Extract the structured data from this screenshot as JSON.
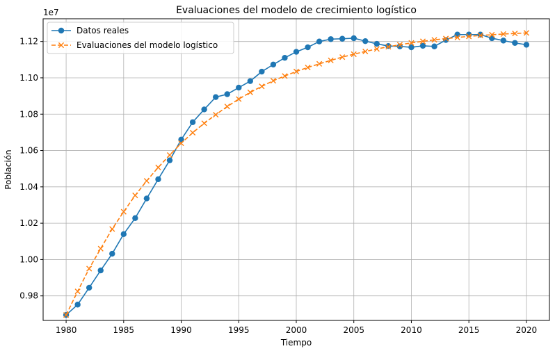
{
  "chart_data": {
    "type": "line",
    "title": "Evaluaciones del modelo de crecimiento logístico",
    "xlabel": "Tiempo",
    "ylabel": "Población",
    "y_offset_label": "1e7",
    "xlim": [
      1978,
      2022
    ],
    "ylim": [
      0.9665,
      1.1325
    ],
    "x_ticks": [
      1980,
      1985,
      1990,
      1995,
      2000,
      2005,
      2010,
      2015,
      2020
    ],
    "y_ticks": [
      0.98,
      1.0,
      1.02,
      1.04,
      1.06,
      1.08,
      1.1,
      1.12
    ],
    "y_tick_labels": [
      "0.98",
      "1.00",
      "1.02",
      "1.04",
      "1.06",
      "1.08",
      "1.10",
      "1.12"
    ],
    "grid": true,
    "legend_position": "top-left",
    "x": [
      1980,
      1981,
      1982,
      1983,
      1984,
      1985,
      1986,
      1987,
      1988,
      1989,
      1990,
      1991,
      1992,
      1993,
      1994,
      1995,
      1996,
      1997,
      1998,
      1999,
      2000,
      2001,
      2002,
      2003,
      2004,
      2005,
      2006,
      2007,
      2008,
      2009,
      2010,
      2011,
      2012,
      2013,
      2014,
      2015,
      2016,
      2017,
      2018,
      2019,
      2020
    ],
    "series": [
      {
        "name": "Datos reales",
        "color": "#1f77b4",
        "marker": "circle",
        "line_style": "solid",
        "values": [
          0.9695,
          0.9752,
          0.9845,
          0.994,
          1.0032,
          1.014,
          1.0228,
          1.0336,
          1.0442,
          1.0546,
          1.066,
          1.0756,
          1.0826,
          1.0894,
          1.091,
          1.0946,
          1.0982,
          1.1034,
          1.1073,
          1.111,
          1.1143,
          1.1168,
          1.12,
          1.1213,
          1.1215,
          1.1218,
          1.1202,
          1.1187,
          1.1175,
          1.1173,
          1.1168,
          1.1176,
          1.1173,
          1.1208,
          1.1238,
          1.1238,
          1.1238,
          1.1218,
          1.1205,
          1.1192,
          1.1182
        ]
      },
      {
        "name": "Evaluaciones del modelo logístico",
        "color": "#ff7f0e",
        "marker": "x",
        "line_style": "dashed",
        "values": [
          0.9695,
          0.9825,
          0.995,
          1.006,
          1.0168,
          1.0263,
          1.0353,
          1.0433,
          1.0507,
          1.0575,
          1.064,
          1.0698,
          1.075,
          1.0797,
          1.0842,
          1.0883,
          1.092,
          1.0953,
          1.0984,
          1.101,
          1.1035,
          1.1057,
          1.1077,
          1.1096,
          1.1114,
          1.113,
          1.1145,
          1.1159,
          1.1171,
          1.1182,
          1.1192,
          1.1201,
          1.1209,
          1.1216,
          1.1222,
          1.1228,
          1.1233,
          1.1237,
          1.1241,
          1.1244,
          1.1247
        ]
      }
    ]
  }
}
